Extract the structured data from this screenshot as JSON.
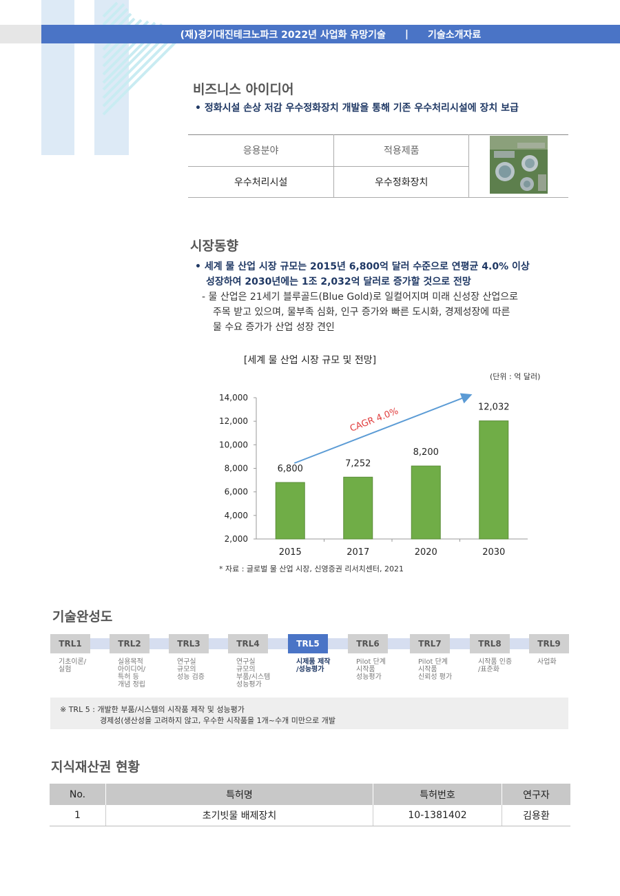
{
  "header": {
    "title": "(재)경기대진테크노파크 2022년 사업화 유망기술",
    "divider": "|",
    "doc_type": "기술소개자료"
  },
  "business": {
    "title": "비즈니스 아이디어",
    "bullet": "• 정화시설 손상 저감 우수정화장치 개발을 통해 기존 우수처리시설에 장치 보급",
    "table": {
      "col1_header": "응용분야",
      "col2_header": "적용제품",
      "col1_value": "우수처리시설",
      "col2_value": "우수정화장치"
    }
  },
  "market": {
    "title": "시장동향",
    "bullet_line1": "• 세계 물 산업 시장 규모는 2015년 6,800억 달러 수준으로 연평균 4.0% 이상",
    "bullet_line2": "성장하여 2030년에는 1조 2,032억 달러로 증가할 것으로 전망",
    "sub_line1": "- 물 산업은 21세기 블루골드(Blue Gold)로 일컬어지며 미래 신성장 산업으로",
    "sub_line2": "주목 받고 있으며, 물부족 심화, 인구 증가와 빠른 도시화, 경제성장에 따른",
    "sub_line3": "물 수요 증가가 산업 성장 견인",
    "source": "* 자료 : 글로벌 물 산업 시장, 신영증권 리서치센터, 2021"
  },
  "chart_data": {
    "type": "bar",
    "title": "[세계 물 산업 시장 규모 및 전망]",
    "unit": "(단위 : 억 달러)",
    "categories": [
      "2015",
      "2017",
      "2020",
      "2030"
    ],
    "values": [
      6800,
      7252,
      8200,
      12032
    ],
    "value_labels": [
      "6,800",
      "7,252",
      "8,200",
      "12,032"
    ],
    "ylim": [
      2000,
      14000
    ],
    "yticks": [
      2000,
      4000,
      6000,
      8000,
      10000,
      12000,
      14000
    ],
    "ytick_labels": [
      "2,000",
      "4,000",
      "6,000",
      "8,000",
      "10,000",
      "12,000",
      "14,000"
    ],
    "annotation": "CAGR 4.0%",
    "bar_color": "#70ad47",
    "arrow_color": "#5b9bd5"
  },
  "trl": {
    "title": "기술완성도",
    "levels": [
      {
        "label": "TRL1",
        "desc": "기초이론/\n실험"
      },
      {
        "label": "TRL2",
        "desc": "실용목적\n아이디어/\n특허 등\n개념 정립"
      },
      {
        "label": "TRL3",
        "desc": "연구실\n규모의\n성능 검증"
      },
      {
        "label": "TRL4",
        "desc": "연구실\n규모의\n부품/시스템\n성능평가"
      },
      {
        "label": "TRL5",
        "desc": "시제품 제작\n/성능평가"
      },
      {
        "label": "TRL6",
        "desc": "Pilot 단계\n시작품\n성능평가"
      },
      {
        "label": "TRL7",
        "desc": "Pilot 단계\n시작품\n신뢰성 평가"
      },
      {
        "label": "TRL8",
        "desc": "시작품 인증\n/표준화"
      },
      {
        "label": "TRL9",
        "desc": "사업화"
      }
    ],
    "active_color": "#4a74c6",
    "note_line1": "※ TRL 5  : 개발한 부품/시스템의 시작품 제작 및 성능평가",
    "note_line2": "경제성(생산성을 고려하지 않고, 우수한 시작품을 1개~수개 미만으로 개발"
  },
  "ip": {
    "title": "지식재산권 현황",
    "headers": [
      "No.",
      "특허명",
      "특허번호",
      "연구자"
    ],
    "rows": [
      [
        "1",
        "초기빗물 배제장치",
        "10-1381402",
        "김용환"
      ]
    ]
  }
}
